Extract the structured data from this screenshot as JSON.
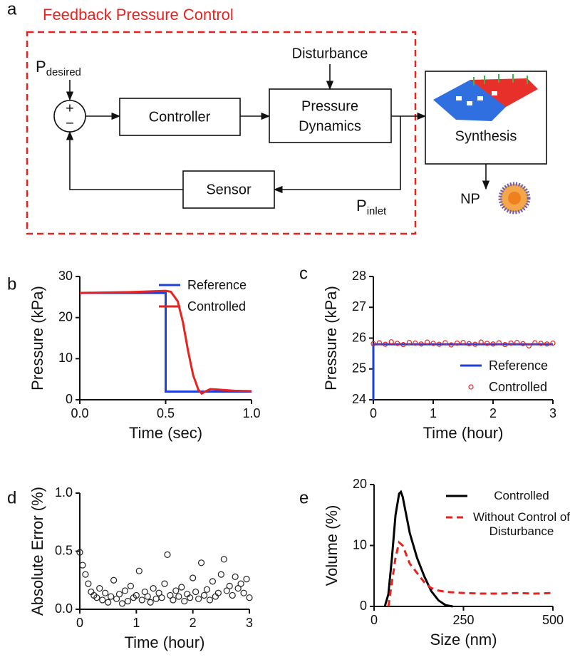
{
  "diagram": {
    "panel_label": "a",
    "title": "Feedback Pressure Control",
    "desired": {
      "base": "P",
      "sub": "desired"
    },
    "plus": "+",
    "minus": "−",
    "controller": "Controller",
    "dynamics": [
      "Pressure",
      "Dynamics"
    ],
    "disturbance": "Disturbance",
    "sensor": "Sensor",
    "inlet": {
      "base": "P",
      "sub": "inlet"
    },
    "synthesis": "Synthesis",
    "np": "NP"
  },
  "chart_data": [
    {
      "type": "line",
      "panel_label": "b",
      "xlabel": "Time (sec)",
      "ylabel": "Pressure (kPa)",
      "xlim": [
        0,
        1
      ],
      "xticks": [
        {
          "value": 0,
          "label": "0.0"
        },
        {
          "value": 0.5,
          "label": "0.5"
        },
        {
          "value": 1,
          "label": "1.0"
        }
      ],
      "ylim": [
        0,
        30
      ],
      "yticks": [
        0,
        10,
        20,
        30
      ],
      "legend": "upper right",
      "series": [
        {
          "name": "Reference",
          "color": "#1f3fdd",
          "style": "line",
          "x": [
            0,
            0.5,
            0.5,
            1.0
          ],
          "values": [
            26,
            26,
            2,
            2
          ]
        },
        {
          "name": "Controlled",
          "color": "#e8231f",
          "style": "line",
          "x": [
            0,
            0.3,
            0.5,
            0.53,
            0.57,
            0.6,
            0.63,
            0.66,
            0.69,
            0.71,
            0.73,
            0.76,
            0.8,
            0.9,
            1.0
          ],
          "values": [
            26,
            26.2,
            26.5,
            26.3,
            24,
            19,
            12,
            6,
            2.5,
            1.5,
            2,
            2.6,
            2.5,
            2.2,
            2.1
          ]
        }
      ]
    },
    {
      "type": "line",
      "panel_label": "c",
      "xlabel": "Time (hour)",
      "ylabel": "Pressure (kPa)",
      "xlim": [
        0,
        3
      ],
      "xticks": [
        0,
        1,
        2,
        3
      ],
      "ylim": [
        24,
        28
      ],
      "yticks": [
        24,
        25,
        26,
        27,
        28
      ],
      "legend": "lower right",
      "series": [
        {
          "name": "Reference",
          "color": "#1f3fdd",
          "style": "line",
          "x": [
            0,
            0,
            3
          ],
          "values": [
            24,
            25.8,
            25.8
          ]
        },
        {
          "name": "Controlled",
          "color": "#e8231f",
          "style": "scatter",
          "x": [
            0,
            0.1,
            0.2,
            0.3,
            0.4,
            0.5,
            0.6,
            0.7,
            0.8,
            0.9,
            1.0,
            1.1,
            1.2,
            1.3,
            1.4,
            1.5,
            1.6,
            1.7,
            1.8,
            1.9,
            2.0,
            2.1,
            2.2,
            2.3,
            2.4,
            2.5,
            2.6,
            2.7,
            2.8,
            2.9,
            3.0
          ],
          "values": [
            25.82,
            25.85,
            25.8,
            25.88,
            25.83,
            25.79,
            25.86,
            25.84,
            25.81,
            25.87,
            25.83,
            25.8,
            25.85,
            25.78,
            25.84,
            25.86,
            25.82,
            25.8,
            25.87,
            25.83,
            25.81,
            25.85,
            25.79,
            25.84,
            25.86,
            25.82,
            25.75,
            25.85,
            25.83,
            25.81,
            25.84
          ]
        }
      ]
    },
    {
      "type": "scatter",
      "panel_label": "d",
      "xlabel": "Time (hour)",
      "ylabel": "Absolute Error (%)",
      "xlim": [
        0,
        3
      ],
      "xticks": [
        0,
        1,
        2,
        3
      ],
      "ylim": [
        0,
        1
      ],
      "yticks": [
        {
          "value": 0,
          "label": "0.0"
        },
        {
          "value": 0.5,
          "label": "0.5"
        },
        {
          "value": 1,
          "label": "1.0"
        }
      ],
      "series": [
        {
          "color": "#222222",
          "style": "scatter",
          "x": [
            0,
            0.05,
            0.1,
            0.15,
            0.2,
            0.25,
            0.3,
            0.35,
            0.4,
            0.45,
            0.5,
            0.55,
            0.6,
            0.65,
            0.7,
            0.75,
            0.8,
            0.85,
            0.9,
            0.95,
            1.0,
            1.05,
            1.1,
            1.15,
            1.2,
            1.25,
            1.3,
            1.35,
            1.4,
            1.45,
            1.5,
            1.55,
            1.6,
            1.65,
            1.7,
            1.75,
            1.8,
            1.85,
            1.9,
            1.95,
            2.0,
            2.05,
            2.1,
            2.15,
            2.2,
            2.25,
            2.3,
            2.35,
            2.4,
            2.45,
            2.5,
            2.55,
            2.6,
            2.65,
            2.7,
            2.75,
            2.8,
            2.85,
            2.9,
            2.95,
            3.0
          ],
          "values": [
            0.49,
            0.38,
            0.3,
            0.22,
            0.15,
            0.12,
            0.1,
            0.18,
            0.08,
            0.14,
            0.06,
            0.11,
            0.25,
            0.09,
            0.13,
            0.05,
            0.16,
            0.07,
            0.2,
            0.1,
            0.12,
            0.33,
            0.08,
            0.15,
            0.11,
            0.06,
            0.18,
            0.09,
            0.14,
            0.1,
            0.22,
            0.47,
            0.12,
            0.08,
            0.16,
            0.11,
            0.19,
            0.07,
            0.13,
            0.1,
            0.27,
            0.15,
            0.09,
            0.4,
            0.12,
            0.17,
            0.08,
            0.24,
            0.11,
            0.14,
            0.3,
            0.43,
            0.16,
            0.2,
            0.12,
            0.28,
            0.18,
            0.22,
            0.14,
            0.26,
            0.1
          ]
        }
      ]
    },
    {
      "type": "line",
      "panel_label": "e",
      "xlabel": "Size (nm)",
      "ylabel": "Volume (%)",
      "xlim": [
        0,
        500
      ],
      "xticks": [
        0,
        250,
        500
      ],
      "ylim": [
        0,
        20
      ],
      "yticks": [
        0,
        10,
        20
      ],
      "legend": "outside right",
      "series": [
        {
          "name": "Controlled",
          "color": "#000000",
          "style": "line",
          "x": [
            30,
            40,
            50,
            60,
            70,
            75,
            80,
            90,
            100,
            120,
            140,
            160,
            180,
            200,
            220
          ],
          "values": [
            0,
            2,
            8,
            15,
            18.5,
            18.8,
            18,
            15,
            12,
            8,
            5,
            2.5,
            1,
            0.2,
            0
          ]
        },
        {
          "name": "Without Control of Disturbance",
          "color": "#e8231f",
          "style": "dashed",
          "x": [
            40,
            50,
            60,
            70,
            80,
            90,
            100,
            120,
            140,
            160,
            180,
            200,
            250,
            300,
            350,
            400,
            450,
            500
          ],
          "values": [
            0,
            4,
            8,
            10.5,
            10,
            8.5,
            7,
            5.5,
            4,
            3,
            2.6,
            2.4,
            2.2,
            2.1,
            2.1,
            2.2,
            2.1,
            2.2
          ]
        }
      ]
    }
  ]
}
